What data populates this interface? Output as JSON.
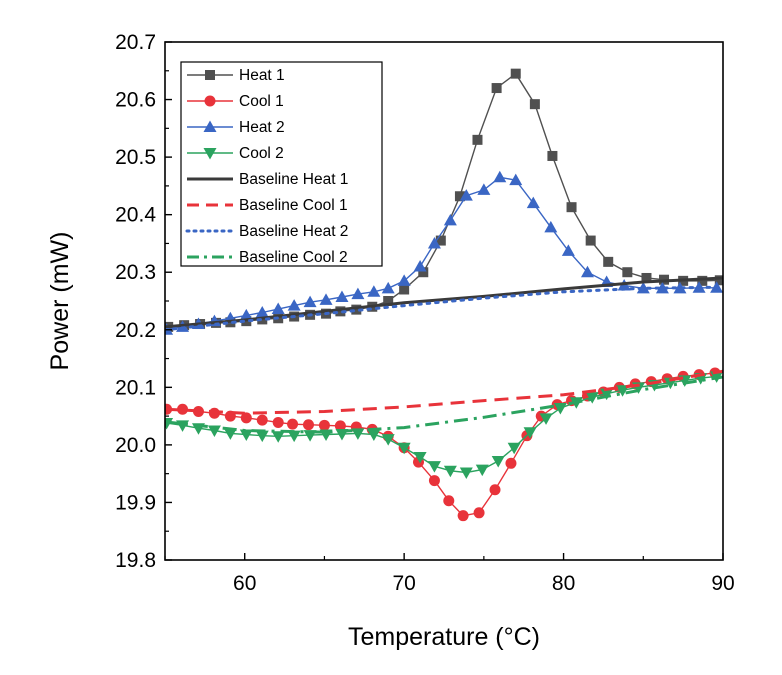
{
  "chart_data": {
    "type": "line",
    "title": "",
    "xlabel": "Temperature (°C)",
    "ylabel": "Power (mW)",
    "xlim": [
      55,
      90
    ],
    "ylim": [
      19.8,
      20.7
    ],
    "x_ticks": [
      "60",
      "70",
      "80",
      "90"
    ],
    "x_tick_values": [
      60,
      70,
      80,
      90
    ],
    "y_ticks": [
      "19.8",
      "19.9",
      "20.0",
      "20.1",
      "20.2",
      "20.3",
      "20.4",
      "20.5",
      "20.6",
      "20.7"
    ],
    "y_tick_values": [
      19.8,
      19.9,
      20.0,
      20.1,
      20.2,
      20.3,
      20.4,
      20.5,
      20.6,
      20.7
    ],
    "grid": false,
    "legend_position": "top-left",
    "series": [
      {
        "name": "Heat 1",
        "color": "#505050",
        "marker": "square",
        "line": "solid",
        "points": [
          [
            55.2,
            20.205
          ],
          [
            56.2,
            20.208
          ],
          [
            57.2,
            20.21
          ],
          [
            58.2,
            20.212
          ],
          [
            59.1,
            20.213
          ],
          [
            60.1,
            20.215
          ],
          [
            61.1,
            20.218
          ],
          [
            62.1,
            20.22
          ],
          [
            63.1,
            20.223
          ],
          [
            64.1,
            20.226
          ],
          [
            65.1,
            20.228
          ],
          [
            66.0,
            20.232
          ],
          [
            67.0,
            20.235
          ],
          [
            68.0,
            20.24
          ],
          [
            69.0,
            20.25
          ],
          [
            70.0,
            20.27
          ],
          [
            71.2,
            20.3
          ],
          [
            72.3,
            20.355
          ],
          [
            73.5,
            20.432
          ],
          [
            74.6,
            20.53
          ],
          [
            75.8,
            20.62
          ],
          [
            77.0,
            20.645
          ],
          [
            78.2,
            20.592
          ],
          [
            79.3,
            20.502
          ],
          [
            80.5,
            20.413
          ],
          [
            81.7,
            20.355
          ],
          [
            82.8,
            20.318
          ],
          [
            84.0,
            20.3
          ],
          [
            85.2,
            20.29
          ],
          [
            86.3,
            20.287
          ],
          [
            87.5,
            20.285
          ],
          [
            88.7,
            20.285
          ],
          [
            89.8,
            20.286
          ]
        ]
      },
      {
        "name": "Cool 1",
        "color": "#e8333a",
        "marker": "circle",
        "line": "solid",
        "points": [
          [
            55.1,
            20.062
          ],
          [
            56.1,
            20.062
          ],
          [
            57.1,
            20.058
          ],
          [
            58.1,
            20.055
          ],
          [
            59.1,
            20.05
          ],
          [
            60.1,
            20.047
          ],
          [
            61.1,
            20.043
          ],
          [
            62.1,
            20.039
          ],
          [
            63.0,
            20.036
          ],
          [
            64.0,
            20.035
          ],
          [
            65.0,
            20.034
          ],
          [
            66.0,
            20.033
          ],
          [
            67.0,
            20.031
          ],
          [
            68.0,
            20.027
          ],
          [
            69.0,
            20.015
          ],
          [
            70.0,
            19.995
          ],
          [
            70.9,
            19.97
          ],
          [
            71.9,
            19.938
          ],
          [
            72.8,
            19.903
          ],
          [
            73.7,
            19.877
          ],
          [
            74.7,
            19.882
          ],
          [
            75.7,
            19.922
          ],
          [
            76.7,
            19.968
          ],
          [
            77.7,
            20.016
          ],
          [
            78.6,
            20.05
          ],
          [
            79.6,
            20.07
          ],
          [
            80.5,
            20.077
          ],
          [
            81.5,
            20.085
          ],
          [
            82.5,
            20.092
          ],
          [
            83.5,
            20.1
          ],
          [
            84.5,
            20.106
          ],
          [
            85.5,
            20.11
          ],
          [
            86.5,
            20.115
          ],
          [
            87.5,
            20.119
          ],
          [
            88.5,
            20.122
          ],
          [
            89.5,
            20.125
          ]
        ]
      },
      {
        "name": "Heat 2",
        "color": "#3a66c4",
        "marker": "triangle-up",
        "line": "solid",
        "points": [
          [
            55.1,
            20.2
          ],
          [
            56.1,
            20.205
          ],
          [
            57.1,
            20.21
          ],
          [
            58.1,
            20.215
          ],
          [
            59.1,
            20.22
          ],
          [
            60.1,
            20.225
          ],
          [
            61.1,
            20.23
          ],
          [
            62.1,
            20.236
          ],
          [
            63.1,
            20.242
          ],
          [
            64.1,
            20.248
          ],
          [
            65.1,
            20.252
          ],
          [
            66.1,
            20.257
          ],
          [
            67.1,
            20.262
          ],
          [
            68.1,
            20.266
          ],
          [
            69.0,
            20.272
          ],
          [
            70.0,
            20.285
          ],
          [
            71.0,
            20.31
          ],
          [
            71.9,
            20.35
          ],
          [
            72.9,
            20.39
          ],
          [
            73.9,
            20.433
          ],
          [
            75.0,
            20.443
          ],
          [
            76.0,
            20.465
          ],
          [
            77.0,
            20.46
          ],
          [
            78.1,
            20.42
          ],
          [
            79.2,
            20.378
          ],
          [
            80.3,
            20.337
          ],
          [
            81.5,
            20.3
          ],
          [
            82.7,
            20.283
          ],
          [
            83.8,
            20.277
          ],
          [
            85.0,
            20.272
          ],
          [
            86.2,
            20.272
          ],
          [
            87.3,
            20.272
          ],
          [
            88.5,
            20.273
          ],
          [
            89.6,
            20.273
          ]
        ]
      },
      {
        "name": "Cool 2",
        "color": "#2ba35f",
        "marker": "triangle-down",
        "line": "solid",
        "points": [
          [
            55.1,
            20.038
          ],
          [
            56.1,
            20.034
          ],
          [
            57.1,
            20.029
          ],
          [
            58.1,
            20.025
          ],
          [
            59.1,
            20.02
          ],
          [
            60.1,
            20.018
          ],
          [
            61.1,
            20.016
          ],
          [
            62.1,
            20.015
          ],
          [
            63.1,
            20.016
          ],
          [
            64.1,
            20.017
          ],
          [
            65.1,
            20.018
          ],
          [
            66.1,
            20.019
          ],
          [
            67.1,
            20.02
          ],
          [
            68.1,
            20.018
          ],
          [
            69.0,
            20.01
          ],
          [
            70.0,
            19.995
          ],
          [
            71.0,
            19.979
          ],
          [
            71.9,
            19.963
          ],
          [
            72.9,
            19.955
          ],
          [
            73.9,
            19.952
          ],
          [
            74.9,
            19.957
          ],
          [
            75.9,
            19.972
          ],
          [
            76.9,
            19.995
          ],
          [
            77.9,
            20.022
          ],
          [
            78.9,
            20.046
          ],
          [
            79.8,
            20.064
          ],
          [
            80.8,
            20.074
          ],
          [
            81.8,
            20.083
          ],
          [
            82.7,
            20.089
          ],
          [
            83.7,
            20.095
          ],
          [
            84.7,
            20.1
          ],
          [
            85.7,
            20.104
          ],
          [
            86.7,
            20.108
          ],
          [
            87.6,
            20.112
          ],
          [
            88.6,
            20.116
          ],
          [
            89.6,
            20.119
          ]
        ]
      },
      {
        "name": "Baseline Heat 1",
        "color": "#3a3a3a",
        "marker": "none",
        "line": "solid",
        "points": [
          [
            55,
            20.205
          ],
          [
            60,
            20.217
          ],
          [
            65,
            20.232
          ],
          [
            70,
            20.247
          ],
          [
            75,
            20.258
          ],
          [
            80,
            20.271
          ],
          [
            85,
            20.283
          ],
          [
            90,
            20.29
          ]
        ]
      },
      {
        "name": "Baseline Cool 1",
        "color": "#e8333a",
        "marker": "none",
        "line": "dash",
        "points": [
          [
            55,
            20.062
          ],
          [
            60,
            20.055
          ],
          [
            65,
            20.058
          ],
          [
            70,
            20.066
          ],
          [
            75,
            20.077
          ],
          [
            80,
            20.087
          ],
          [
            85,
            20.105
          ],
          [
            90,
            20.128
          ]
        ]
      },
      {
        "name": "Baseline Heat 2",
        "color": "#3a66c4",
        "marker": "none",
        "line": "dot",
        "points": [
          [
            55,
            20.2
          ],
          [
            60,
            20.215
          ],
          [
            65,
            20.228
          ],
          [
            70,
            20.242
          ],
          [
            75,
            20.255
          ],
          [
            80,
            20.266
          ],
          [
            85,
            20.272
          ],
          [
            90,
            20.274
          ]
        ]
      },
      {
        "name": "Baseline Cool 2",
        "color": "#2ba35f",
        "marker": "none",
        "line": "dashdot",
        "points": [
          [
            55,
            20.04
          ],
          [
            60,
            20.025
          ],
          [
            65,
            20.022
          ],
          [
            70,
            20.03
          ],
          [
            75,
            20.048
          ],
          [
            80,
            20.07
          ],
          [
            85,
            20.096
          ],
          [
            90,
            20.118
          ]
        ]
      }
    ]
  }
}
